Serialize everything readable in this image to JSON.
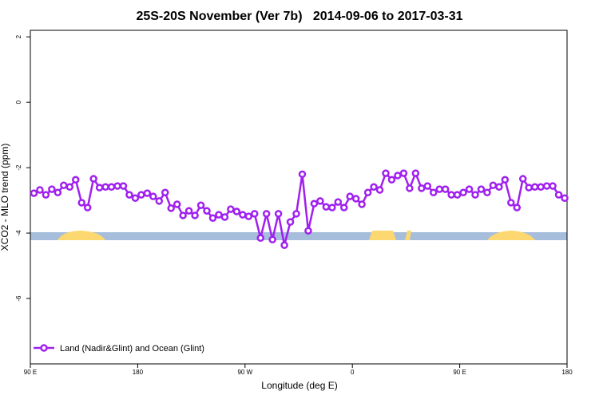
{
  "chart_data": {
    "type": "line",
    "title": "25S-20S November (Ver 7b)   2014-09-06 to 2017-03-31",
    "x_label": "Longitude (deg E)",
    "y_label": "XCO2 - MLO trend (ppm)",
    "x": [
      93,
      98,
      103,
      108,
      113,
      118,
      123,
      128,
      133,
      138,
      143,
      148,
      153,
      158,
      163,
      168,
      173,
      178,
      183,
      188,
      193,
      198,
      203,
      208,
      213,
      218,
      223,
      228,
      233,
      238,
      243,
      248,
      253,
      258,
      263,
      268,
      273,
      278,
      283,
      288,
      293,
      298,
      303,
      308,
      313,
      318,
      323,
      328,
      333,
      338,
      343,
      348,
      353,
      358,
      363,
      368,
      373,
      378,
      383,
      388,
      393,
      398,
      403,
      408,
      413,
      418,
      423,
      428,
      433,
      438,
      443,
      448,
      453,
      458,
      463,
      468,
      473,
      478,
      483,
      488,
      493,
      498,
      503,
      508,
      513,
      518,
      523,
      528,
      533,
      538
    ],
    "series": [
      {
        "name": "Land (Nadir&Glint) and Ocean (Glint)",
        "color": "#a020f0",
        "values": [
          -2.78,
          -2.68,
          -2.83,
          -2.66,
          -2.76,
          -2.54,
          -2.59,
          -2.37,
          -3.07,
          -3.22,
          -2.34,
          -2.61,
          -2.59,
          -2.59,
          -2.56,
          -2.56,
          -2.83,
          -2.93,
          -2.83,
          -2.78,
          -2.88,
          -3.02,
          -2.76,
          -3.24,
          -3.12,
          -3.46,
          -3.32,
          -3.46,
          -3.15,
          -3.32,
          -3.54,
          -3.44,
          -3.51,
          -3.27,
          -3.34,
          -3.44,
          -3.49,
          -3.41,
          -4.15,
          -3.41,
          -4.2,
          -3.41,
          -4.37,
          -3.66,
          -3.41,
          -2.2,
          -3.93,
          -3.1,
          -3.02,
          -3.2,
          -3.22,
          -3.05,
          -3.22,
          -2.88,
          -2.95,
          -3.12,
          -2.76,
          -2.59,
          -2.68,
          -2.17,
          -2.37,
          -2.24,
          -2.17,
          -2.63,
          -2.17,
          -2.63,
          -2.56,
          -2.76,
          -2.66,
          -2.66,
          -2.83,
          -2.83,
          -2.76,
          -2.66,
          -2.83,
          -2.66,
          -2.76,
          -2.54,
          -2.59,
          -2.37,
          -3.07,
          -3.22,
          -2.34,
          -2.61,
          -2.59,
          -2.59,
          -2.56,
          -2.56,
          -2.83,
          -2.93
        ]
      }
    ],
    "xlim": [
      90,
      540
    ],
    "xticks": [
      {
        "value": 90,
        "label": "90 E"
      },
      180,
      {
        "value": 270,
        "label": "90 W"
      },
      {
        "value": 360,
        "label": "0"
      },
      {
        "value": 450,
        "label": "90 E"
      },
      {
        "value": 540,
        "label": "180"
      }
    ],
    "ylim": [
      -8,
      2.2
    ],
    "yticks": [
      -6,
      -4,
      -2,
      0,
      2
    ],
    "legend": "bottomleft"
  }
}
